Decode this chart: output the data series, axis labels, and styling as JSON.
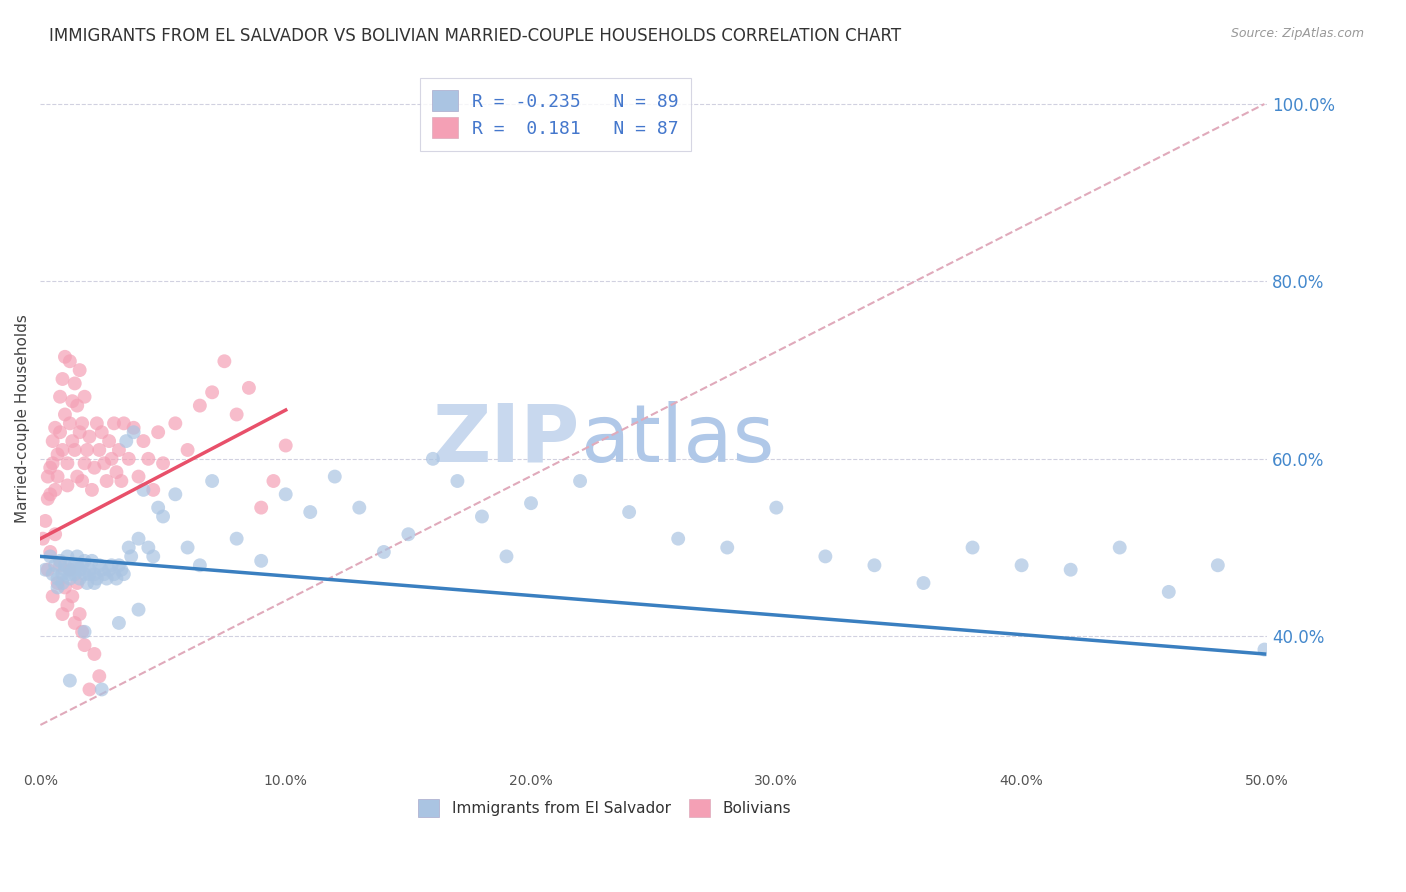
{
  "title": "IMMIGRANTS FROM EL SALVADOR VS BOLIVIAN MARRIED-COUPLE HOUSEHOLDS CORRELATION CHART",
  "source": "Source: ZipAtlas.com",
  "ylabel": "Married-couple Households",
  "xlim": [
    0.0,
    0.5
  ],
  "ylim": [
    0.25,
    1.04
  ],
  "xtick_labels": [
    "0.0%",
    "10.0%",
    "20.0%",
    "30.0%",
    "40.0%",
    "50.0%"
  ],
  "xtick_vals": [
    0.0,
    0.1,
    0.2,
    0.3,
    0.4,
    0.5
  ],
  "ytick_labels": [
    "40.0%",
    "60.0%",
    "80.0%",
    "100.0%"
  ],
  "ytick_vals": [
    0.4,
    0.6,
    0.8,
    1.0
  ],
  "blue_color": "#aac4e2",
  "pink_color": "#f4a0b5",
  "blue_line_color": "#3a7fc0",
  "pink_line_color": "#e8506a",
  "dashed_line_color": "#e0aabb",
  "legend_R_blue": "-0.235",
  "legend_N_blue": "89",
  "legend_R_pink": "0.181",
  "legend_N_pink": "87",
  "legend_label_blue": "Immigrants from El Salvador",
  "legend_label_pink": "Bolivians",
  "watermark_zip": "ZIP",
  "watermark_atlas": "atlas",
  "blue_scatter_x": [
    0.002,
    0.004,
    0.005,
    0.006,
    0.007,
    0.007,
    0.008,
    0.009,
    0.009,
    0.01,
    0.01,
    0.011,
    0.012,
    0.012,
    0.013,
    0.014,
    0.014,
    0.015,
    0.015,
    0.016,
    0.016,
    0.017,
    0.018,
    0.018,
    0.019,
    0.02,
    0.02,
    0.021,
    0.022,
    0.022,
    0.023,
    0.024,
    0.025,
    0.026,
    0.027,
    0.028,
    0.029,
    0.03,
    0.031,
    0.032,
    0.033,
    0.034,
    0.035,
    0.036,
    0.037,
    0.038,
    0.04,
    0.042,
    0.044,
    0.046,
    0.048,
    0.05,
    0.055,
    0.06,
    0.065,
    0.07,
    0.08,
    0.09,
    0.1,
    0.11,
    0.12,
    0.13,
    0.14,
    0.15,
    0.16,
    0.17,
    0.18,
    0.19,
    0.2,
    0.22,
    0.24,
    0.26,
    0.28,
    0.3,
    0.32,
    0.34,
    0.36,
    0.38,
    0.4,
    0.42,
    0.44,
    0.46,
    0.48,
    0.499,
    0.012,
    0.018,
    0.025,
    0.032,
    0.04
  ],
  "blue_scatter_y": [
    0.475,
    0.49,
    0.47,
    0.48,
    0.465,
    0.455,
    0.485,
    0.47,
    0.46,
    0.48,
    0.475,
    0.49,
    0.47,
    0.465,
    0.475,
    0.48,
    0.47,
    0.49,
    0.48,
    0.465,
    0.475,
    0.48,
    0.47,
    0.485,
    0.46,
    0.475,
    0.47,
    0.485,
    0.46,
    0.47,
    0.465,
    0.48,
    0.475,
    0.47,
    0.465,
    0.475,
    0.48,
    0.47,
    0.465,
    0.48,
    0.475,
    0.47,
    0.62,
    0.5,
    0.49,
    0.63,
    0.51,
    0.565,
    0.5,
    0.49,
    0.545,
    0.535,
    0.56,
    0.5,
    0.48,
    0.575,
    0.51,
    0.485,
    0.56,
    0.54,
    0.58,
    0.545,
    0.495,
    0.515,
    0.6,
    0.575,
    0.535,
    0.49,
    0.55,
    0.575,
    0.54,
    0.51,
    0.5,
    0.545,
    0.49,
    0.48,
    0.46,
    0.5,
    0.48,
    0.475,
    0.5,
    0.45,
    0.48,
    0.385,
    0.35,
    0.405,
    0.34,
    0.415,
    0.43
  ],
  "pink_scatter_x": [
    0.001,
    0.002,
    0.003,
    0.003,
    0.004,
    0.004,
    0.005,
    0.005,
    0.006,
    0.006,
    0.007,
    0.007,
    0.008,
    0.008,
    0.009,
    0.009,
    0.01,
    0.01,
    0.011,
    0.011,
    0.012,
    0.012,
    0.013,
    0.013,
    0.014,
    0.014,
    0.015,
    0.015,
    0.016,
    0.016,
    0.017,
    0.017,
    0.018,
    0.018,
    0.019,
    0.02,
    0.021,
    0.022,
    0.023,
    0.024,
    0.025,
    0.026,
    0.027,
    0.028,
    0.029,
    0.03,
    0.031,
    0.032,
    0.033,
    0.034,
    0.036,
    0.038,
    0.04,
    0.042,
    0.044,
    0.046,
    0.048,
    0.05,
    0.055,
    0.06,
    0.065,
    0.07,
    0.075,
    0.08,
    0.085,
    0.09,
    0.095,
    0.1,
    0.003,
    0.004,
    0.005,
    0.006,
    0.007,
    0.008,
    0.009,
    0.01,
    0.011,
    0.012,
    0.013,
    0.014,
    0.015,
    0.016,
    0.017,
    0.018,
    0.02,
    0.022,
    0.024
  ],
  "pink_scatter_y": [
    0.51,
    0.53,
    0.555,
    0.58,
    0.56,
    0.59,
    0.595,
    0.62,
    0.565,
    0.635,
    0.605,
    0.58,
    0.67,
    0.63,
    0.69,
    0.61,
    0.65,
    0.715,
    0.595,
    0.57,
    0.64,
    0.71,
    0.62,
    0.665,
    0.61,
    0.685,
    0.58,
    0.66,
    0.63,
    0.7,
    0.575,
    0.64,
    0.595,
    0.67,
    0.61,
    0.625,
    0.565,
    0.59,
    0.64,
    0.61,
    0.63,
    0.595,
    0.575,
    0.62,
    0.6,
    0.64,
    0.585,
    0.61,
    0.575,
    0.64,
    0.6,
    0.635,
    0.58,
    0.62,
    0.6,
    0.565,
    0.63,
    0.595,
    0.64,
    0.61,
    0.66,
    0.675,
    0.71,
    0.65,
    0.68,
    0.545,
    0.575,
    0.615,
    0.475,
    0.495,
    0.445,
    0.515,
    0.46,
    0.48,
    0.425,
    0.455,
    0.435,
    0.475,
    0.445,
    0.415,
    0.46,
    0.425,
    0.405,
    0.39,
    0.34,
    0.38,
    0.355
  ],
  "blue_trend_x": [
    0.0,
    0.499
  ],
  "blue_trend_y": [
    0.49,
    0.38
  ],
  "pink_trend_x": [
    0.0,
    0.1
  ],
  "pink_trend_y": [
    0.51,
    0.655
  ],
  "dashed_trend_x": [
    0.0,
    0.499
  ],
  "dashed_trend_y": [
    0.3,
    1.0
  ],
  "background_color": "#ffffff",
  "grid_color": "#ccccdd",
  "title_fontsize": 12,
  "axis_label_fontsize": 11,
  "tick_fontsize": 10,
  "watermark_fontsize_zip": 58,
  "watermark_fontsize_atlas": 58,
  "watermark_color_zip": "#c8d8ee",
  "watermark_color_atlas": "#b0c8e8"
}
